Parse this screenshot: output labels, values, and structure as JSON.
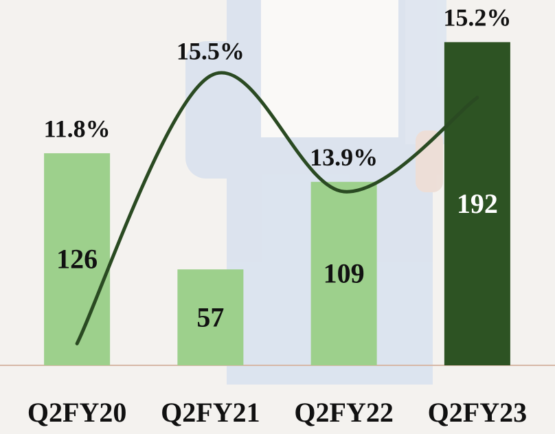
{
  "chart_data": {
    "type": "bar",
    "categories": [
      "Q2FY20",
      "Q2FY21",
      "Q2FY22",
      "Q2FY23"
    ],
    "series": [
      {
        "type": "bar",
        "colors": [
          "#9dd08c",
          "#9dd08c",
          "#9dd08c",
          "#2d5323"
        ],
        "label_colors": [
          "#111111",
          "#111111",
          "#111111",
          "#ffffff"
        ],
        "values": [
          126,
          57,
          109,
          192
        ]
      },
      {
        "type": "line",
        "axis": "y2",
        "color": "#2a4a22",
        "values": [
          11.8,
          15.5,
          13.9,
          15.2
        ],
        "value_labels": [
          "11.8%",
          "15.5%",
          "13.9%",
          "15.2%"
        ]
      }
    ],
    "ylim": [
      0,
      215
    ],
    "y2lim": [
      11.5,
      16.5
    ]
  }
}
